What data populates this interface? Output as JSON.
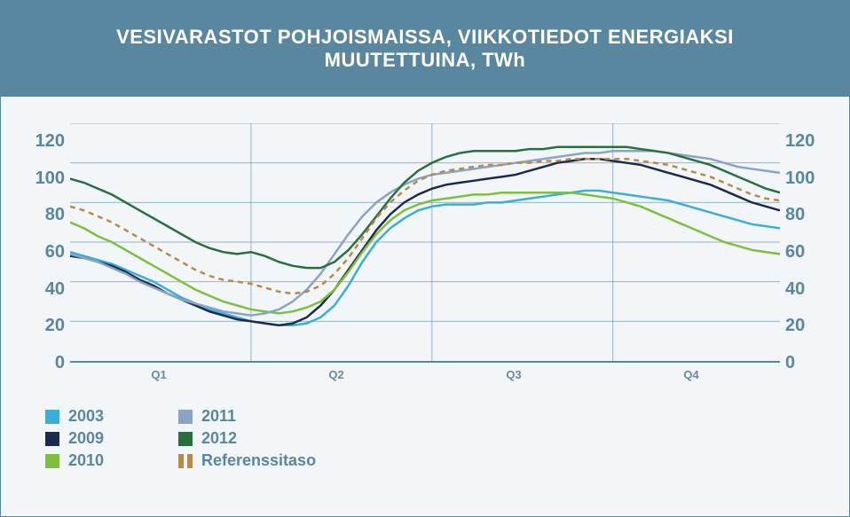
{
  "header": {
    "title": "VESIVARASTOT POHJOISMAISSA, VIIKKOTIEDOT ENERGIAKSI MUUTETTUINA, TWh"
  },
  "chart": {
    "type": "line",
    "background_color": "#f2f6f8",
    "header_bg": "#5a87a0",
    "header_text_color": "#ffffff",
    "axis_color": "#5a87a0",
    "grid_color": "#5a87a0",
    "tick_font_color": "#5a87a0",
    "tick_fontsize": 20,
    "xlabel_fontsize": 13,
    "ylim": [
      0,
      120
    ],
    "ytick_step": 20,
    "yticks": [
      "0",
      "20",
      "40",
      "60",
      "80",
      "100",
      "120"
    ],
    "x_categories": [
      "Q1",
      "Q2",
      "Q3",
      "Q4"
    ],
    "x_points": 52,
    "quarter_dividers": [
      13,
      26,
      39
    ],
    "series": [
      {
        "name": "2003",
        "label": "2003",
        "color": "#3aaed8",
        "dash": "none",
        "width": 2.5,
        "values": [
          55,
          53,
          51,
          49,
          46,
          43,
          40,
          36,
          32,
          29,
          26,
          24,
          22,
          20,
          19,
          18,
          18,
          19,
          22,
          28,
          38,
          50,
          60,
          67,
          72,
          76,
          78,
          79,
          79,
          79,
          80,
          80,
          81,
          82,
          83,
          84,
          85,
          86,
          86,
          85,
          84,
          83,
          82,
          81,
          79,
          77,
          75,
          73,
          71,
          69,
          68,
          67
        ]
      },
      {
        "name": "2009",
        "label": "2009",
        "color": "#1b2a4e",
        "dash": "none",
        "width": 2.5,
        "values": [
          53,
          52,
          50,
          48,
          45,
          41,
          38,
          34,
          31,
          28,
          25,
          23,
          21,
          20,
          19,
          18,
          19,
          22,
          28,
          36,
          46,
          56,
          66,
          74,
          80,
          84,
          87,
          89,
          90,
          91,
          92,
          93,
          94,
          96,
          98,
          100,
          101,
          102,
          102,
          101,
          100,
          99,
          97,
          95,
          93,
          91,
          89,
          86,
          83,
          80,
          78,
          76
        ]
      },
      {
        "name": "2010",
        "label": "2010",
        "color": "#7fbf3f",
        "dash": "none",
        "width": 2.5,
        "values": [
          70,
          67,
          63,
          60,
          56,
          52,
          48,
          44,
          40,
          36,
          33,
          30,
          28,
          26,
          25,
          24,
          25,
          27,
          30,
          36,
          45,
          55,
          64,
          71,
          76,
          79,
          81,
          82,
          83,
          84,
          84,
          85,
          85,
          85,
          85,
          85,
          85,
          84,
          83,
          82,
          80,
          78,
          75,
          72,
          69,
          66,
          63,
          60,
          58,
          56,
          55,
          54
        ]
      },
      {
        "name": "2011",
        "label": "2011",
        "color": "#8ba3c7",
        "dash": "none",
        "width": 2.5,
        "values": [
          54,
          52,
          50,
          47,
          44,
          40,
          37,
          34,
          31,
          29,
          27,
          25,
          24,
          23,
          24,
          26,
          30,
          36,
          44,
          54,
          64,
          73,
          80,
          85,
          89,
          92,
          94,
          95,
          96,
          97,
          98,
          99,
          100,
          101,
          102,
          103,
          104,
          105,
          105,
          106,
          106,
          106,
          106,
          105,
          104,
          103,
          102,
          100,
          98,
          97,
          96,
          95
        ]
      },
      {
        "name": "2012",
        "label": "2012",
        "color": "#2a6e3f",
        "dash": "none",
        "width": 2.5,
        "values": [
          92,
          90,
          87,
          84,
          80,
          76,
          72,
          68,
          64,
          60,
          57,
          55,
          54,
          55,
          53,
          50,
          48,
          47,
          47,
          50,
          56,
          64,
          73,
          82,
          90,
          96,
          100,
          103,
          105,
          106,
          106,
          106,
          106,
          107,
          107,
          108,
          108,
          108,
          108,
          108,
          108,
          107,
          106,
          105,
          103,
          101,
          99,
          96,
          93,
          90,
          87,
          85
        ]
      },
      {
        "name": "Referenssitaso",
        "label": "Referenssitaso",
        "color": "#b88a4a",
        "dash": "6,5",
        "width": 2.5,
        "values": [
          78,
          76,
          73,
          70,
          66,
          62,
          58,
          54,
          50,
          46,
          43,
          41,
          40,
          39,
          37,
          35,
          34,
          35,
          38,
          44,
          52,
          62,
          72,
          80,
          86,
          91,
          94,
          96,
          97,
          98,
          99,
          99,
          100,
          100,
          101,
          101,
          102,
          102,
          102,
          102,
          102,
          101,
          100,
          99,
          97,
          95,
          93,
          90,
          87,
          84,
          82,
          81
        ]
      }
    ],
    "legend": {
      "columns": [
        [
          "2003",
          "2009",
          "2010"
        ],
        [
          "2011",
          "2012",
          "Referenssitaso"
        ]
      ],
      "label_color": "#5a87a0",
      "fontsize": 18
    }
  }
}
